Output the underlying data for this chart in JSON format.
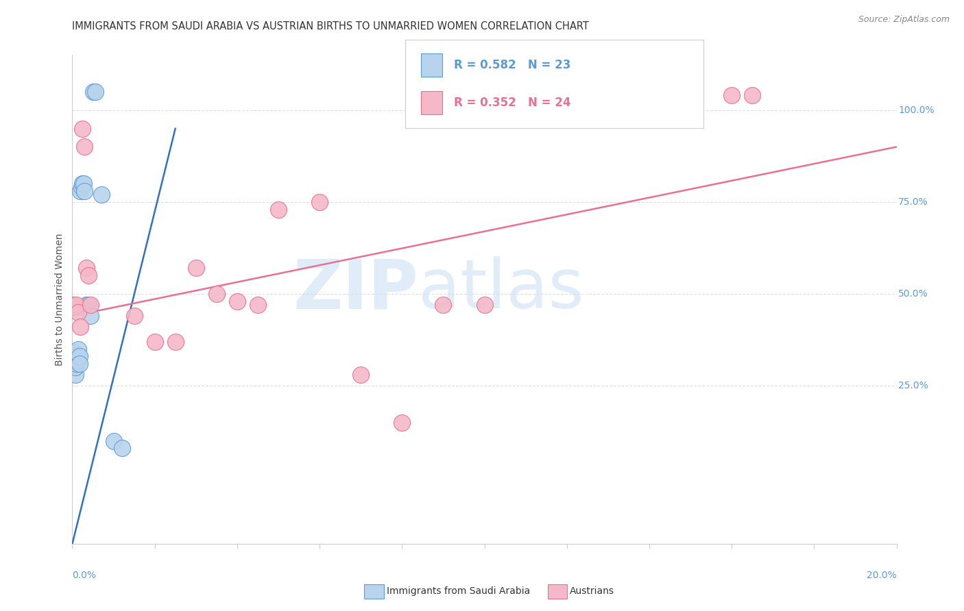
{
  "title": "IMMIGRANTS FROM SAUDI ARABIA VS AUSTRIAN BIRTHS TO UNMARRIED WOMEN CORRELATION CHART",
  "source": "Source: ZipAtlas.com",
  "ylabel": "Births to Unmarried Women",
  "right_ytick_labels": [
    "25.0%",
    "50.0%",
    "75.0%",
    "100.0%"
  ],
  "right_ytick_vals": [
    25.0,
    50.0,
    75.0,
    100.0
  ],
  "x_range": [
    0.0,
    20.0
  ],
  "y_range": [
    -18.0,
    115.0
  ],
  "blue_R": "0.582",
  "blue_N": "23",
  "pink_R": "0.352",
  "pink_N": "24",
  "blue_fill": "#b8d4ed",
  "blue_edge": "#5b9bd5",
  "pink_fill": "#f4b8c8",
  "pink_edge": "#e87090",
  "blue_line_color": "#3070c0",
  "pink_line_color": "#e87090",
  "legend_label_blue": "Immigrants from Saudi Arabia",
  "legend_label_pink": "Austrians",
  "watermark_zip": "ZIP",
  "watermark_atlas": "atlas",
  "blue_x": [
    0.05,
    0.07,
    0.08,
    0.09,
    0.1,
    0.12,
    0.13,
    0.15,
    0.17,
    0.18,
    0.2,
    0.22,
    0.25,
    0.27,
    0.3,
    0.35,
    0.4,
    0.45,
    0.5,
    0.55,
    0.7,
    1.0,
    1.2
  ],
  "blue_y": [
    34,
    28,
    30,
    31,
    32,
    32,
    33,
    35,
    33,
    31,
    78,
    79,
    80,
    80,
    78,
    47,
    47,
    44,
    105,
    105,
    77,
    10,
    8
  ],
  "pink_x": [
    0.05,
    0.1,
    0.15,
    0.2,
    0.25,
    0.3,
    0.35,
    0.4,
    0.45,
    1.5,
    2.0,
    2.5,
    3.0,
    3.5,
    4.0,
    4.5,
    5.0,
    6.0,
    7.0,
    8.0,
    9.0,
    10.0,
    16.0,
    16.5
  ],
  "pink_y": [
    47,
    47,
    45,
    41,
    95,
    90,
    57,
    55,
    47,
    44,
    37,
    37,
    57,
    50,
    48,
    47,
    73,
    75,
    28,
    15,
    47,
    47,
    104,
    104
  ],
  "blue_line_x": [
    0.0,
    2.5
  ],
  "blue_line_y": [
    -18.0,
    95.0
  ],
  "pink_line_x": [
    0.0,
    20.0
  ],
  "pink_line_y": [
    44.0,
    90.0
  ],
  "grid_color": "#dddddd",
  "grid_linestyle": "--",
  "bg_color": "#ffffff",
  "title_color": "#333333",
  "axis_color": "#5b9bd5",
  "spine_color": "#cccccc"
}
